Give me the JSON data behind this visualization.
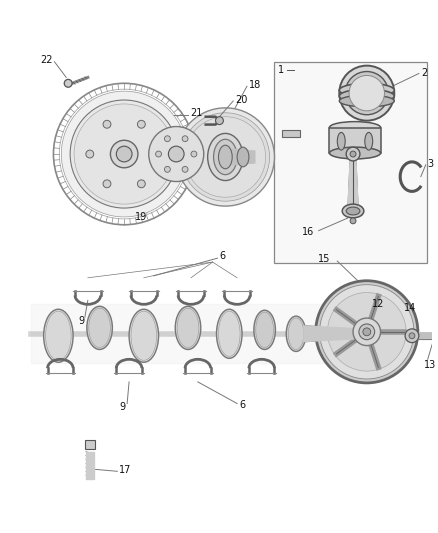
{
  "bg_color": "#ffffff",
  "fig_width": 4.38,
  "fig_height": 5.33,
  "dpi": 100,
  "line_color": "#555555",
  "part_color": "#aaaaaa",
  "dark_part": "#444444",
  "label_color": "#111111",
  "label_fs": 7.0,
  "leader_color": "#777777"
}
